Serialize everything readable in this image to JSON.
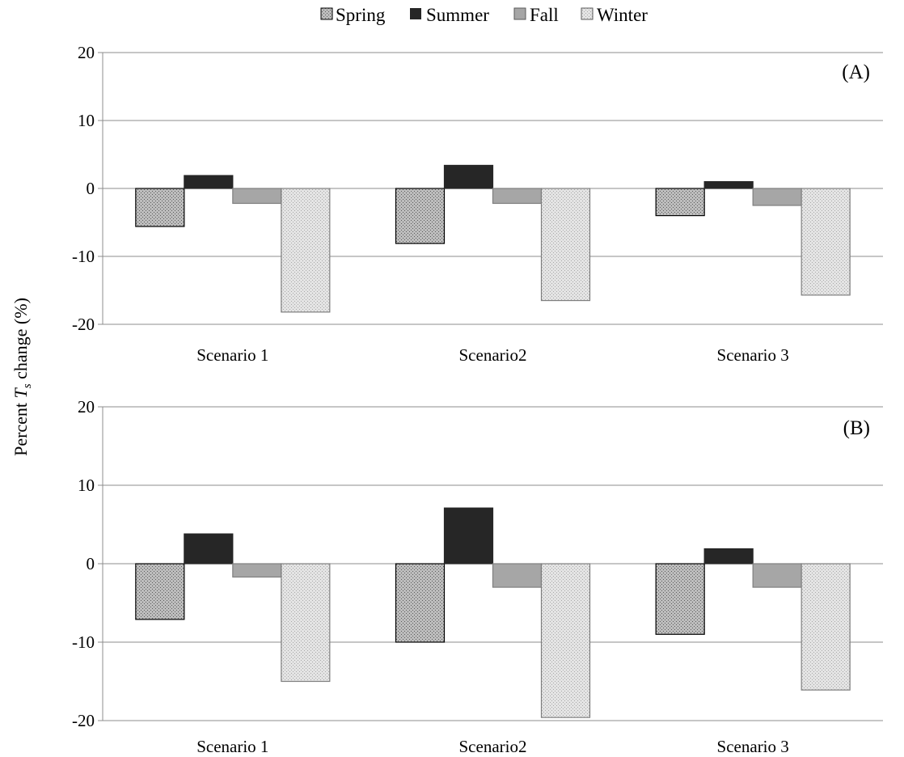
{
  "chart_data": [
    {
      "type": "bar",
      "panel_label": "(A)",
      "categories": [
        "Scenario 1",
        "Scenario2",
        "Scenario 3"
      ],
      "series": [
        {
          "name": "Spring",
          "values": [
            -5.6,
            -8.1,
            -4.0
          ]
        },
        {
          "name": "Summer",
          "values": [
            1.9,
            3.4,
            1.0
          ]
        },
        {
          "name": "Fall",
          "values": [
            -2.2,
            -2.2,
            -2.5
          ]
        },
        {
          "name": "Winter",
          "values": [
            -18.2,
            -16.5,
            -15.7
          ]
        }
      ],
      "ylim": [
        -20,
        20
      ],
      "yticks": [
        "20",
        "10",
        "0",
        "-10",
        "-20"
      ],
      "grid": true
    },
    {
      "type": "bar",
      "panel_label": "(B)",
      "categories": [
        "Scenario 1",
        "Scenario2",
        "Scenario 3"
      ],
      "series": [
        {
          "name": "Spring",
          "values": [
            -7.1,
            -10.0,
            -9.0
          ]
        },
        {
          "name": "Summer",
          "values": [
            3.8,
            7.1,
            1.9
          ]
        },
        {
          "name": "Fall",
          "values": [
            -1.7,
            -3.0,
            -3.0
          ]
        },
        {
          "name": "Winter",
          "values": [
            -15.0,
            -19.6,
            -16.1
          ]
        }
      ],
      "ylim": [
        -20,
        20
      ],
      "yticks": [
        "20",
        "10",
        "0",
        "-10",
        "-20"
      ],
      "grid": true
    }
  ],
  "legend": {
    "placement": "top-center",
    "items": [
      {
        "label": "Spring",
        "style": "dotted-dark",
        "color": "#a6a6a6"
      },
      {
        "label": "Summer",
        "style": "solid",
        "color": "#262626"
      },
      {
        "label": "Fall",
        "style": "solid",
        "color": "#a6a6a6"
      },
      {
        "label": "Winter",
        "style": "dotted-light",
        "color": "#d9d9d9"
      }
    ]
  },
  "ylabel": {
    "prefix": "Percent ",
    "symbol": "T",
    "subscript": "s",
    "suffix": " change (%)"
  }
}
